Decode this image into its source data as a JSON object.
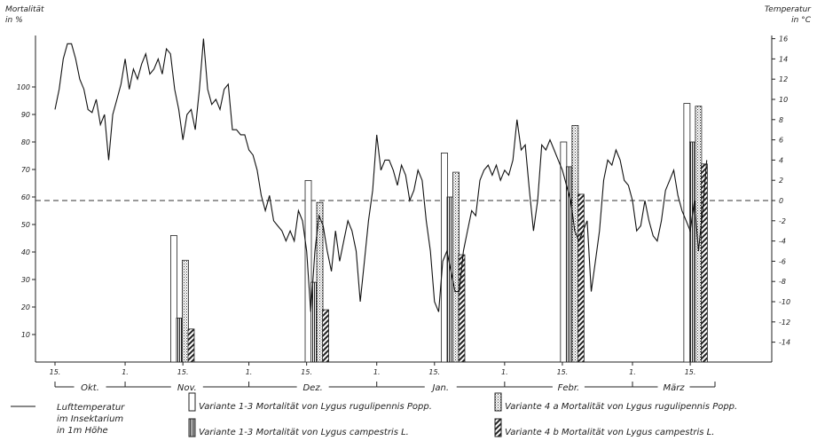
{
  "chart_data": {
    "type": "bar+line",
    "left_axis_label": [
      "Mortalität",
      "in %"
    ],
    "right_axis_label": [
      "Temperatur",
      "in °C"
    ],
    "left_ticks": [
      10,
      20,
      30,
      40,
      50,
      60,
      70,
      80,
      90,
      100
    ],
    "right_ticks": [
      "16",
      "14",
      "12",
      "10",
      "8",
      "6",
      "4",
      "2",
      "0",
      "-2",
      "-4",
      "-6",
      "-8",
      "-10",
      "-12",
      "-14"
    ],
    "ylim_mortality": [
      0,
      110
    ],
    "ylim_temperature": [
      -16,
      16
    ],
    "x_day_range": [
      0,
      160
    ],
    "x_ticks": [
      {
        "label": "15.",
        "day": 0
      },
      {
        "label": "1.",
        "day": 17
      },
      {
        "label": "15.",
        "day": 31
      },
      {
        "label": "1.",
        "day": 47
      },
      {
        "label": "15.",
        "day": 61
      },
      {
        "label": "1.",
        "day": 78
      },
      {
        "label": "15.",
        "day": 92
      },
      {
        "label": "1.",
        "day": 109
      },
      {
        "label": "15.",
        "day": 123
      },
      {
        "label": "1.",
        "day": 140
      },
      {
        "label": "15.",
        "day": 154
      }
    ],
    "months": [
      {
        "label": "Okt.",
        "start": 0,
        "end": 17
      },
      {
        "label": "Nov.",
        "start": 17,
        "end": 47
      },
      {
        "label": "Dez.",
        "start": 47,
        "end": 78
      },
      {
        "label": "Jan.",
        "start": 78,
        "end": 109
      },
      {
        "label": "Febr.",
        "start": 109,
        "end": 140
      },
      {
        "label": "März",
        "start": 140,
        "end": 160
      }
    ],
    "series": [
      {
        "name": "Variante 1-3 Mortalität von Lygus rugulipennis Popp.",
        "pattern": "blank",
        "points": [
          {
            "day": 28.8,
            "value": 46
          },
          {
            "day": 61.4,
            "value": 66
          },
          {
            "day": 94.4,
            "value": 76
          },
          {
            "day": 123.3,
            "value": 80
          },
          {
            "day": 153.2,
            "value": 94
          }
        ]
      },
      {
        "name": "Variante 1-3 Mortalität von Lygus campestris L.",
        "pattern": "vertical",
        "points": [
          {
            "day": 30.2,
            "value": 16
          },
          {
            "day": 62.8,
            "value": 29
          },
          {
            "day": 95.8,
            "value": 60
          },
          {
            "day": 124.7,
            "value": 71
          },
          {
            "day": 154.6,
            "value": 80
          }
        ]
      },
      {
        "name": "Variante 4 a Mortalität von Lygus rugulipennis Popp.",
        "pattern": "dotted",
        "points": [
          {
            "day": 31.6,
            "value": 37
          },
          {
            "day": 64.2,
            "value": 58
          },
          {
            "day": 97.2,
            "value": 69
          },
          {
            "day": 126.1,
            "value": 86
          },
          {
            "day": 156.0,
            "value": 93
          }
        ]
      },
      {
        "name": "Variante 4 b Mortalität von Lygus campestris L.",
        "pattern": "hatched",
        "points": [
          {
            "day": 33.0,
            "value": 12
          },
          {
            "day": 65.6,
            "value": 19
          },
          {
            "day": 98.6,
            "value": 39
          },
          {
            "day": 127.5,
            "value": 61
          },
          {
            "day": 157.4,
            "value": 72
          }
        ]
      }
    ],
    "temperature_line": {
      "name": "Lufttemperatur im Insektarium in 1m Höhe",
      "points": [
        [
          0,
          9
        ],
        [
          1,
          11
        ],
        [
          2,
          14
        ],
        [
          3,
          15.5
        ],
        [
          4,
          15.5
        ],
        [
          5,
          14
        ],
        [
          6,
          12
        ],
        [
          7,
          11
        ],
        [
          8,
          9
        ],
        [
          9,
          8.7
        ],
        [
          10,
          10
        ],
        [
          11,
          7.5
        ],
        [
          12,
          8.5
        ],
        [
          13,
          4
        ],
        [
          14,
          8.5
        ],
        [
          15,
          10
        ],
        [
          16,
          11.5
        ],
        [
          17,
          14
        ],
        [
          18,
          11
        ],
        [
          19,
          13
        ],
        [
          20,
          12
        ],
        [
          21,
          13.5
        ],
        [
          22,
          14.5
        ],
        [
          23,
          12.5
        ],
        [
          24,
          13
        ],
        [
          25,
          14
        ],
        [
          26,
          12.5
        ],
        [
          27,
          15
        ],
        [
          28,
          14.5
        ],
        [
          29,
          11
        ],
        [
          30,
          9
        ],
        [
          31,
          6
        ],
        [
          32,
          8.5
        ],
        [
          33,
          9
        ],
        [
          34,
          7
        ],
        [
          35,
          11
        ],
        [
          36,
          16
        ],
        [
          37,
          11
        ],
        [
          38,
          9.5
        ],
        [
          39,
          10
        ],
        [
          40,
          9
        ],
        [
          41,
          11
        ],
        [
          42,
          11.5
        ],
        [
          43,
          7
        ],
        [
          44,
          7
        ],
        [
          45,
          6.5
        ],
        [
          46,
          6.5
        ],
        [
          47,
          5
        ],
        [
          48,
          4.5
        ],
        [
          49,
          3
        ],
        [
          50,
          0.5
        ],
        [
          51,
          -1
        ],
        [
          52,
          0.5
        ],
        [
          53,
          -2
        ],
        [
          54,
          -2.5
        ],
        [
          55,
          -3
        ],
        [
          56,
          -4
        ],
        [
          57,
          -3
        ],
        [
          58,
          -4
        ],
        [
          59,
          -1
        ],
        [
          60,
          -2
        ],
        [
          61,
          -5
        ],
        [
          62,
          -11
        ],
        [
          63,
          -5
        ],
        [
          64,
          -1.5
        ],
        [
          65,
          -2.5
        ],
        [
          66,
          -5
        ],
        [
          67,
          -7
        ],
        [
          68,
          -3
        ],
        [
          69,
          -6
        ],
        [
          70,
          -4
        ],
        [
          71,
          -2
        ],
        [
          72,
          -3
        ],
        [
          73,
          -5
        ],
        [
          74,
          -10
        ],
        [
          75,
          -6
        ],
        [
          76,
          -2
        ],
        [
          77,
          1
        ],
        [
          78,
          6.5
        ],
        [
          79,
          3
        ],
        [
          80,
          4
        ],
        [
          81,
          4
        ],
        [
          82,
          3
        ],
        [
          83,
          1.5
        ],
        [
          84,
          3.5
        ],
        [
          85,
          2.5
        ],
        [
          86,
          0
        ],
        [
          87,
          1
        ],
        [
          88,
          3
        ],
        [
          89,
          2
        ],
        [
          90,
          -2
        ],
        [
          91,
          -5
        ],
        [
          92,
          -10
        ],
        [
          93,
          -11
        ],
        [
          94,
          -6
        ],
        [
          95,
          -5
        ],
        [
          96,
          -7
        ],
        [
          97,
          -9
        ],
        [
          98,
          -9
        ],
        [
          99,
          -5
        ],
        [
          100,
          -3
        ],
        [
          101,
          -1
        ],
        [
          102,
          -1.5
        ],
        [
          103,
          2
        ],
        [
          104,
          3
        ],
        [
          105,
          3.5
        ],
        [
          106,
          2.5
        ],
        [
          107,
          3.5
        ],
        [
          108,
          2
        ],
        [
          109,
          3
        ],
        [
          110,
          2.5
        ],
        [
          111,
          4
        ],
        [
          112,
          8
        ],
        [
          113,
          5
        ],
        [
          114,
          5.5
        ],
        [
          115,
          1
        ],
        [
          116,
          -3
        ],
        [
          117,
          0
        ],
        [
          118,
          5.5
        ],
        [
          119,
          5
        ],
        [
          120,
          6
        ],
        [
          121,
          5
        ],
        [
          122,
          4
        ],
        [
          123,
          3
        ],
        [
          124,
          1.5
        ],
        [
          125,
          0
        ],
        [
          126,
          -3
        ],
        [
          127,
          -4
        ],
        [
          128,
          -3
        ],
        [
          129,
          -2
        ],
        [
          130,
          -9
        ],
        [
          131,
          -6
        ],
        [
          132,
          -3
        ],
        [
          133,
          2
        ],
        [
          134,
          4
        ],
        [
          135,
          3.5
        ],
        [
          136,
          5
        ],
        [
          137,
          4
        ],
        [
          138,
          2
        ],
        [
          139,
          1.5
        ],
        [
          140,
          0
        ],
        [
          141,
          -3
        ],
        [
          142,
          -2.5
        ],
        [
          143,
          0
        ],
        [
          144,
          -2
        ],
        [
          145,
          -3.5
        ],
        [
          146,
          -4
        ],
        [
          147,
          -2
        ],
        [
          148,
          1
        ],
        [
          149,
          2
        ],
        [
          150,
          3
        ],
        [
          151,
          0.5
        ],
        [
          152,
          -1
        ],
        [
          153,
          -2
        ],
        [
          154,
          -3
        ],
        [
          155,
          0
        ],
        [
          156,
          -5
        ],
        [
          157,
          -1
        ],
        [
          158,
          4
        ]
      ]
    },
    "zero_line_temperature": 0,
    "legend": {
      "temperature": [
        "Lufttemperatur",
        "im Insektarium",
        "in 1m Höhe"
      ]
    }
  }
}
